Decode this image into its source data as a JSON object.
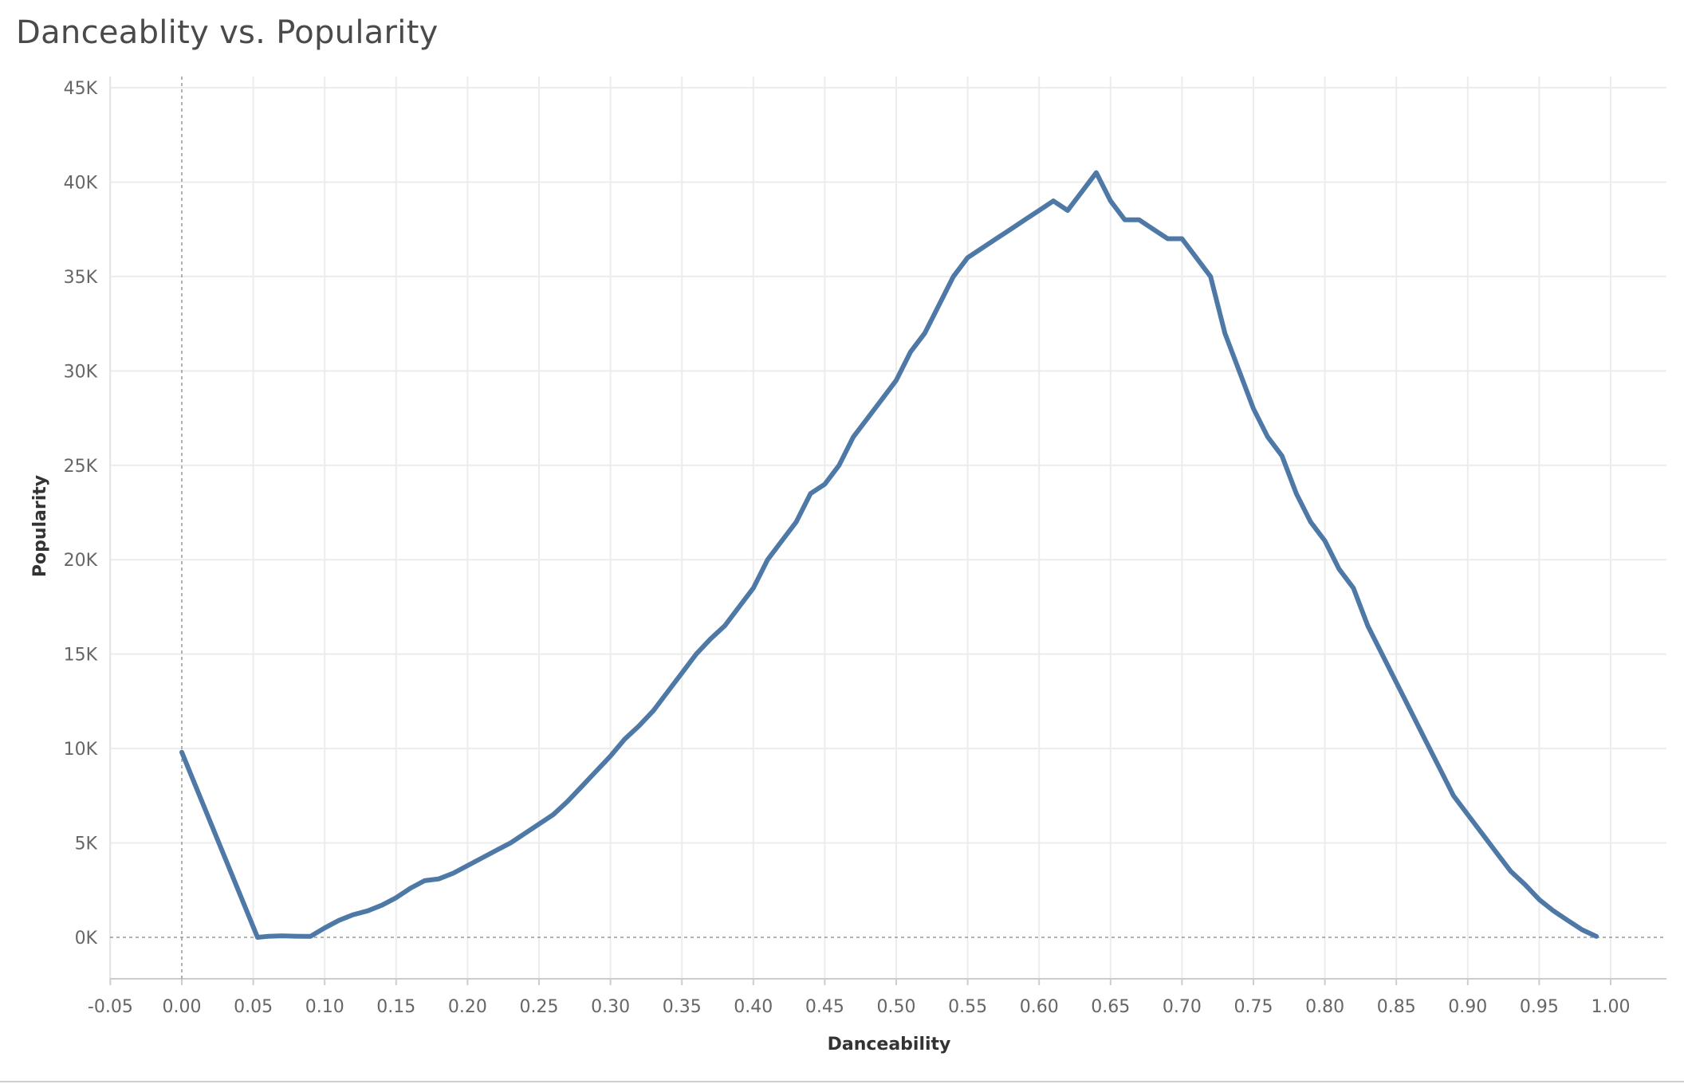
{
  "chart_data": {
    "type": "line",
    "title": "Danceablity vs. Popularity",
    "xlabel": "Danceability",
    "ylabel": "Popularity",
    "xlim": [
      -0.05,
      1.0
    ],
    "ylim": [
      0,
      45000
    ],
    "x_ticks": [
      "-0.05",
      "0.00",
      "0.05",
      "0.10",
      "0.15",
      "0.20",
      "0.25",
      "0.30",
      "0.35",
      "0.40",
      "0.45",
      "0.50",
      "0.55",
      "0.60",
      "0.65",
      "0.70",
      "0.75",
      "0.80",
      "0.85",
      "0.90",
      "0.95",
      "1.00"
    ],
    "y_ticks": [
      "0K",
      "5K",
      "10K",
      "15K",
      "20K",
      "25K",
      "30K",
      "35K",
      "40K",
      "45K"
    ],
    "grid": true,
    "line_color": "#4e79a7",
    "series": [
      {
        "x": [
          0.0,
          0.053,
          0.06,
          0.07,
          0.08,
          0.09,
          0.1,
          0.11,
          0.12,
          0.13,
          0.14,
          0.15,
          0.16,
          0.17,
          0.18,
          0.19,
          0.2,
          0.21,
          0.22,
          0.23,
          0.24,
          0.25,
          0.26,
          0.27,
          0.28,
          0.29,
          0.3,
          0.31,
          0.32,
          0.33,
          0.34,
          0.35,
          0.36,
          0.37,
          0.38,
          0.39,
          0.4,
          0.41,
          0.42,
          0.43,
          0.44,
          0.45,
          0.46,
          0.47,
          0.48,
          0.49,
          0.5,
          0.51,
          0.52,
          0.53,
          0.54,
          0.55,
          0.56,
          0.57,
          0.58,
          0.59,
          0.6,
          0.61,
          0.62,
          0.63,
          0.64,
          0.65,
          0.66,
          0.67,
          0.68,
          0.69,
          0.7,
          0.71,
          0.72,
          0.73,
          0.74,
          0.75,
          0.76,
          0.77,
          0.78,
          0.79,
          0.8,
          0.81,
          0.82,
          0.83,
          0.84,
          0.85,
          0.86,
          0.87,
          0.88,
          0.89,
          0.9,
          0.91,
          0.92,
          0.93,
          0.94,
          0.95,
          0.96,
          0.97,
          0.98,
          0.99
        ],
        "y": [
          9800,
          0,
          50,
          80,
          60,
          50,
          500,
          900,
          1200,
          1400,
          1700,
          2100,
          2600,
          3000,
          3100,
          3400,
          3800,
          4200,
          4600,
          5000,
          5500,
          6000,
          6500,
          7200,
          8000,
          8800,
          9600,
          10500,
          11200,
          12000,
          13000,
          14000,
          15000,
          15800,
          16500,
          17500,
          18500,
          20000,
          21000,
          22000,
          23500,
          24000,
          25000,
          26500,
          27500,
          28500,
          29500,
          31000,
          32000,
          33500,
          35000,
          36000,
          36500,
          37000,
          37500,
          38000,
          38500,
          39000,
          38500,
          39500,
          40500,
          39000,
          38000,
          38000,
          37500,
          37000,
          37000,
          36000,
          35000,
          32000,
          30000,
          28000,
          26500,
          25500,
          23500,
          22000,
          21000,
          19500,
          18500,
          16500,
          15000,
          13500,
          12000,
          10500,
          9000,
          7500,
          6500,
          5500,
          4500,
          3500,
          2800,
          2000,
          1400,
          900,
          400,
          50
        ]
      }
    ]
  }
}
